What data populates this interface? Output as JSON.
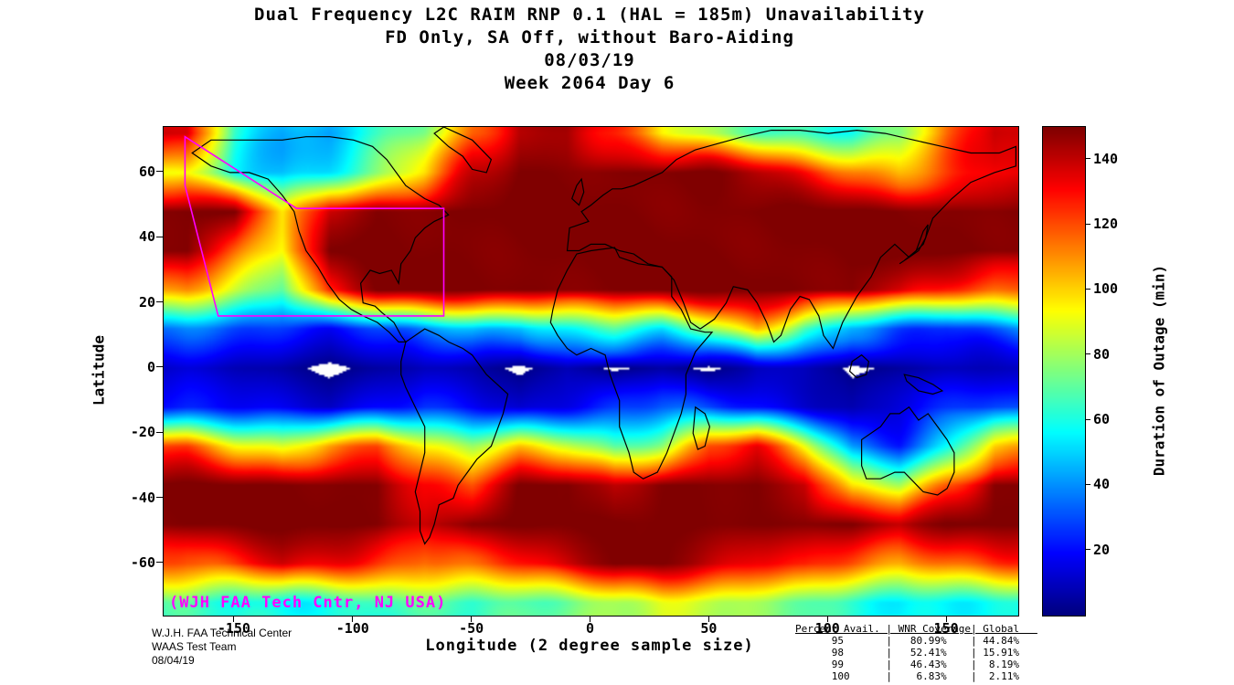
{
  "chart_data": {
    "type": "heatmap",
    "title_lines": [
      "Dual Frequency L2C RAIM RNP 0.1 (HAL = 185m) Unavailability",
      "FD Only, SA Off, without Baro-Aiding",
      "08/03/19",
      "Week 2064 Day 6"
    ],
    "xlabel": "Longitude (2 degree sample size)",
    "ylabel": "Latitude",
    "colorbar_label": "Duration of Outage (min)",
    "colorbar_ticks": [
      20,
      40,
      60,
      80,
      100,
      120,
      140
    ],
    "value_range": [
      0,
      150
    ],
    "x_ticks": [
      -150,
      -100,
      -50,
      0,
      50,
      100,
      150
    ],
    "y_ticks": [
      60,
      40,
      20,
      0,
      -20,
      -40,
      -60
    ],
    "lon_range": [
      -180,
      180
    ],
    "lat_range": [
      -76,
      74
    ],
    "colormap": "jet",
    "zero_color": "#ffffff",
    "coastline_color": "#000000",
    "annotations": {
      "watermark": "(WJH FAA Tech Cntr, NJ USA)",
      "watermark_color": "#ff00ff"
    },
    "grid": {
      "lon_centers": [
        -170,
        -150,
        -130,
        -110,
        -90,
        -70,
        -50,
        -30,
        -10,
        10,
        30,
        50,
        70,
        90,
        110,
        130,
        150,
        170
      ],
      "lat_centers": [
        72,
        60,
        48,
        36,
        24,
        12,
        0,
        -12,
        -24,
        -36,
        -48,
        -60,
        -72
      ],
      "values_min": [
        [
          140,
          70,
          45,
          40,
          55,
          75,
          120,
          145,
          145,
          120,
          90,
          80,
          75,
          70,
          60,
          70,
          110,
          140
        ],
        [
          90,
          55,
          50,
          60,
          75,
          95,
          135,
          150,
          150,
          150,
          150,
          150,
          140,
          130,
          120,
          110,
          120,
          130
        ],
        [
          150,
          150,
          90,
          140,
          150,
          150,
          150,
          150,
          150,
          150,
          150,
          150,
          150,
          150,
          150,
          150,
          150,
          150
        ],
        [
          150,
          120,
          90,
          150,
          150,
          150,
          150,
          150,
          150,
          150,
          150,
          150,
          150,
          150,
          150,
          150,
          150,
          150
        ],
        [
          110,
          90,
          70,
          130,
          150,
          150,
          150,
          150,
          150,
          150,
          150,
          150,
          150,
          150,
          150,
          140,
          120,
          110
        ],
        [
          35,
          30,
          25,
          20,
          30,
          40,
          45,
          40,
          55,
          70,
          60,
          80,
          100,
          60,
          40,
          35,
          30,
          35
        ],
        [
          12,
          8,
          5,
          0,
          5,
          10,
          8,
          0,
          8,
          0,
          6,
          0,
          12,
          10,
          0,
          4,
          8,
          12
        ],
        [
          25,
          20,
          15,
          10,
          18,
          25,
          20,
          12,
          18,
          25,
          30,
          25,
          20,
          15,
          8,
          15,
          20,
          25
        ],
        [
          120,
          100,
          90,
          110,
          120,
          90,
          80,
          100,
          90,
          70,
          80,
          120,
          130,
          90,
          40,
          30,
          60,
          100
        ],
        [
          150,
          150,
          150,
          150,
          150,
          130,
          120,
          150,
          150,
          140,
          150,
          150,
          150,
          140,
          90,
          80,
          120,
          150
        ],
        [
          150,
          150,
          150,
          150,
          150,
          140,
          150,
          150,
          150,
          150,
          150,
          150,
          150,
          150,
          150,
          140,
          150,
          150
        ],
        [
          120,
          130,
          140,
          130,
          120,
          110,
          120,
          130,
          140,
          150,
          150,
          140,
          130,
          130,
          120,
          110,
          115,
          120
        ],
        [
          60,
          55,
          60,
          65,
          70,
          65,
          60,
          65,
          75,
          85,
          90,
          85,
          75,
          70,
          60,
          55,
          58,
          60
        ]
      ]
    },
    "coverage_polygon_color": "#ff00ff",
    "coverage_polygon": [
      [
        -171,
        71
      ],
      [
        -171,
        56
      ],
      [
        -157,
        16
      ],
      [
        -62,
        16
      ],
      [
        -62,
        49
      ],
      [
        -124,
        49
      ]
    ],
    "coastlines": [
      [
        [
          -168,
          66
        ],
        [
          -160,
          62
        ],
        [
          -152,
          60
        ],
        [
          -144,
          60
        ],
        [
          -136,
          58
        ],
        [
          -130,
          53
        ],
        [
          -125,
          48
        ],
        [
          -123,
          42
        ],
        [
          -120,
          36
        ],
        [
          -115,
          31
        ],
        [
          -111,
          26
        ],
        [
          -106,
          21
        ],
        [
          -101,
          18
        ],
        [
          -96,
          16
        ],
        [
          -90,
          14
        ],
        [
          -85,
          11
        ],
        [
          -81,
          8
        ],
        [
          -78,
          8
        ],
        [
          -80,
          10
        ],
        [
          -83,
          14
        ],
        [
          -88,
          17
        ],
        [
          -91,
          19
        ],
        [
          -96,
          20
        ],
        [
          -97,
          26
        ],
        [
          -93,
          30
        ],
        [
          -89,
          29
        ],
        [
          -84,
          30
        ],
        [
          -81,
          26
        ],
        [
          -80,
          32
        ],
        [
          -76,
          36
        ],
        [
          -74,
          40
        ],
        [
          -70,
          43
        ],
        [
          -66,
          45
        ],
        [
          -60,
          47
        ],
        [
          -64,
          50
        ],
        [
          -70,
          52
        ],
        [
          -78,
          56
        ],
        [
          -82,
          60
        ],
        [
          -86,
          64
        ],
        [
          -92,
          68
        ],
        [
          -100,
          70
        ],
        [
          -110,
          71
        ],
        [
          -120,
          71
        ],
        [
          -130,
          70
        ],
        [
          -140,
          70
        ],
        [
          -150,
          70
        ],
        [
          -160,
          70
        ]
      ],
      [
        [
          -62,
          74
        ],
        [
          -50,
          70
        ],
        [
          -42,
          64
        ],
        [
          -44,
          60
        ],
        [
          -50,
          61
        ],
        [
          -54,
          65
        ],
        [
          -60,
          68
        ],
        [
          -66,
          72
        ]
      ],
      [
        [
          -78,
          8
        ],
        [
          -74,
          10
        ],
        [
          -70,
          12
        ],
        [
          -64,
          10
        ],
        [
          -60,
          8
        ],
        [
          -54,
          6
        ],
        [
          -50,
          4
        ],
        [
          -44,
          -2
        ],
        [
          -38,
          -6
        ],
        [
          -35,
          -8
        ],
        [
          -37,
          -14
        ],
        [
          -40,
          -20
        ],
        [
          -42,
          -24
        ],
        [
          -48,
          -28
        ],
        [
          -52,
          -32
        ],
        [
          -56,
          -36
        ],
        [
          -58,
          -40
        ],
        [
          -64,
          -42
        ],
        [
          -66,
          -48
        ],
        [
          -68,
          -52
        ],
        [
          -70,
          -54
        ],
        [
          -72,
          -50
        ],
        [
          -72,
          -44
        ],
        [
          -74,
          -38
        ],
        [
          -72,
          -32
        ],
        [
          -70,
          -26
        ],
        [
          -70,
          -18
        ],
        [
          -74,
          -12
        ],
        [
          -78,
          -6
        ],
        [
          -80,
          -2
        ],
        [
          -80,
          2
        ]
      ],
      [
        [
          -6,
          35
        ],
        [
          0,
          36
        ],
        [
          10,
          37
        ],
        [
          12,
          34
        ],
        [
          20,
          32
        ],
        [
          30,
          31
        ],
        [
          34,
          28
        ],
        [
          34,
          22
        ],
        [
          38,
          18
        ],
        [
          42,
          12
        ],
        [
          48,
          11
        ],
        [
          51,
          11
        ],
        [
          44,
          5
        ],
        [
          40,
          -2
        ],
        [
          40,
          -8
        ],
        [
          38,
          -14
        ],
        [
          35,
          -20
        ],
        [
          32,
          -26
        ],
        [
          28,
          -32
        ],
        [
          22,
          -34
        ],
        [
          18,
          -32
        ],
        [
          16,
          -26
        ],
        [
          12,
          -18
        ],
        [
          12,
          -10
        ],
        [
          8,
          -2
        ],
        [
          6,
          4
        ],
        [
          0,
          6
        ],
        [
          -6,
          4
        ],
        [
          -10,
          6
        ],
        [
          -14,
          10
        ],
        [
          -17,
          14
        ],
        [
          -16,
          18
        ],
        [
          -14,
          24
        ],
        [
          -10,
          30
        ]
      ],
      [
        [
          -10,
          36
        ],
        [
          -9,
          43
        ],
        [
          -1,
          45
        ],
        [
          -4,
          48
        ],
        [
          0,
          50
        ],
        [
          5,
          53
        ],
        [
          9,
          55
        ],
        [
          13,
          55
        ],
        [
          18,
          56
        ],
        [
          24,
          58
        ],
        [
          30,
          60
        ],
        [
          36,
          64
        ],
        [
          44,
          67
        ],
        [
          54,
          69
        ],
        [
          64,
          71
        ],
        [
          76,
          73
        ],
        [
          88,
          73
        ],
        [
          100,
          72
        ],
        [
          112,
          73
        ],
        [
          124,
          72
        ],
        [
          136,
          70
        ],
        [
          148,
          68
        ],
        [
          160,
          66
        ],
        [
          172,
          66
        ],
        [
          179,
          68
        ],
        [
          179,
          62
        ],
        [
          170,
          60
        ],
        [
          160,
          57
        ],
        [
          152,
          52
        ],
        [
          144,
          46
        ],
        [
          140,
          38
        ],
        [
          134,
          34
        ],
        [
          128,
          38
        ],
        [
          122,
          34
        ],
        [
          118,
          28
        ],
        [
          112,
          22
        ],
        [
          106,
          14
        ],
        [
          102,
          6
        ],
        [
          98,
          10
        ],
        [
          96,
          16
        ],
        [
          92,
          21
        ],
        [
          88,
          22
        ],
        [
          84,
          18
        ],
        [
          80,
          10
        ],
        [
          77,
          8
        ],
        [
          74,
          14
        ],
        [
          70,
          20
        ],
        [
          66,
          24
        ],
        [
          60,
          25
        ],
        [
          57,
          20
        ],
        [
          52,
          15
        ],
        [
          46,
          12
        ],
        [
          42,
          14
        ],
        [
          39,
          20
        ],
        [
          35,
          27
        ],
        [
          30,
          31
        ],
        [
          24,
          32
        ],
        [
          18,
          35
        ],
        [
          12,
          36
        ],
        [
          6,
          38
        ],
        [
          0,
          38
        ],
        [
          -5,
          36
        ]
      ],
      [
        [
          114,
          -22
        ],
        [
          114,
          -30
        ],
        [
          116,
          -34
        ],
        [
          122,
          -34
        ],
        [
          128,
          -32
        ],
        [
          132,
          -32
        ],
        [
          136,
          -35
        ],
        [
          140,
          -38
        ],
        [
          146,
          -39
        ],
        [
          150,
          -37
        ],
        [
          153,
          -32
        ],
        [
          153,
          -26
        ],
        [
          150,
          -22
        ],
        [
          146,
          -18
        ],
        [
          142,
          -14
        ],
        [
          138,
          -16
        ],
        [
          134,
          -12
        ],
        [
          130,
          -14
        ],
        [
          126,
          -14
        ],
        [
          122,
          -18
        ],
        [
          118,
          -20
        ]
      ],
      [
        [
          44,
          -12
        ],
        [
          48,
          -14
        ],
        [
          50,
          -18
        ],
        [
          48,
          -24
        ],
        [
          45,
          -25
        ],
        [
          43,
          -20
        ]
      ],
      [
        [
          110,
          2
        ],
        [
          114,
          4
        ],
        [
          117,
          2
        ],
        [
          116,
          -2
        ],
        [
          112,
          -3
        ],
        [
          109,
          -1
        ]
      ],
      [
        [
          132,
          -2
        ],
        [
          138,
          -3
        ],
        [
          144,
          -5
        ],
        [
          148,
          -7
        ],
        [
          144,
          -8
        ],
        [
          138,
          -7
        ],
        [
          133,
          -4
        ]
      ],
      [
        [
          -5,
          50
        ],
        [
          -3,
          54
        ],
        [
          -4,
          58
        ],
        [
          -6,
          56
        ],
        [
          -8,
          52
        ]
      ],
      [
        [
          130,
          32
        ],
        [
          134,
          34
        ],
        [
          138,
          36
        ],
        [
          141,
          40
        ],
        [
          142,
          44
        ],
        [
          140,
          42
        ],
        [
          137,
          36
        ],
        [
          132,
          33
        ]
      ]
    ]
  },
  "footer": {
    "left_lines": [
      "W.J.H. FAA Technical Center",
      "WAAS Test Team",
      "08/04/19"
    ]
  },
  "stats_table": {
    "header": "Percent Avail. | WNR Coverage| Global",
    "rows": [
      [
        "95",
        "80.99%",
        "44.84%"
      ],
      [
        "98",
        "52.41%",
        "15.91%"
      ],
      [
        "99",
        "46.43%",
        "8.19%"
      ],
      [
        "100",
        "6.83%",
        "2.11%"
      ]
    ]
  }
}
